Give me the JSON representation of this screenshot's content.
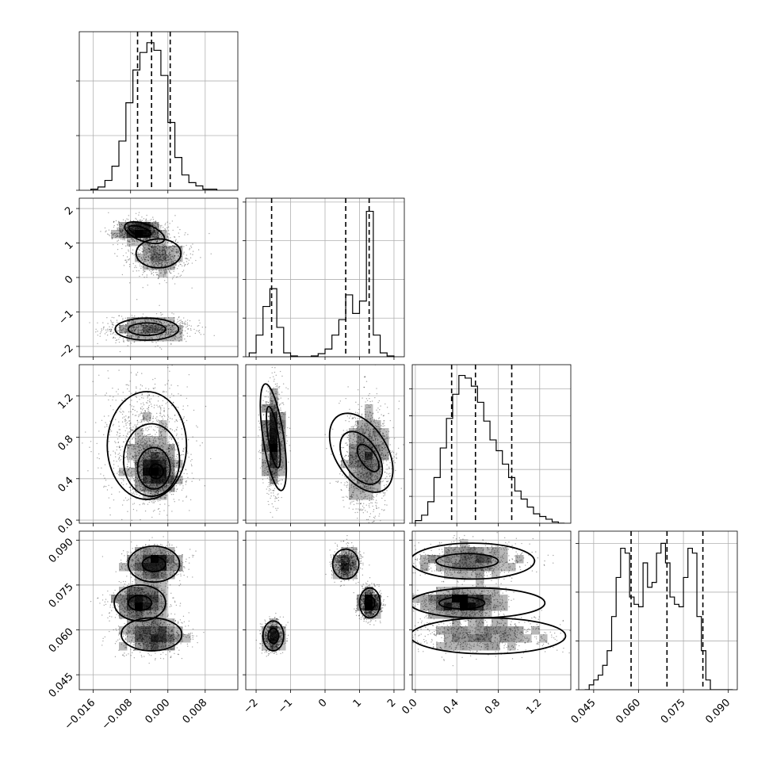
{
  "chart_data": {
    "type": "corner",
    "grid": true,
    "parameters": [
      {
        "range": [
          -0.019,
          0.015
        ],
        "ticks": [
          -0.016,
          -0.008,
          0.0,
          0.008
        ],
        "tick_labels": [
          "−0.016",
          "−0.008",
          "0.000",
          "0.008"
        ],
        "quantiles": [
          -0.0065,
          -0.0035,
          0.0005
        ],
        "hist_bins": [
          -0.0165,
          -0.015,
          -0.0135,
          -0.012,
          -0.0105,
          -0.009,
          -0.0075,
          -0.006,
          -0.0045,
          -0.003,
          -0.0015,
          0.0,
          0.0015,
          0.003,
          0.0045,
          0.006,
          0.0075,
          0.009
        ],
        "hist_counts": [
          1,
          3,
          9,
          22,
          45,
          80,
          110,
          126,
          135,
          128,
          105,
          62,
          30,
          14,
          7,
          4,
          1,
          1
        ],
        "hist_yticks": [
          0,
          50,
          100
        ],
        "hist_ymax": 145
      },
      {
        "range": [
          -2.3,
          2.3
        ],
        "ticks": [
          -2,
          -1,
          0,
          1,
          2
        ],
        "tick_labels": [
          "−2",
          "−1",
          "0",
          "1",
          "2"
        ],
        "quantiles": [
          -1.55,
          0.6,
          1.28
        ],
        "hist_bins": [
          -2.2,
          -2.0,
          -1.8,
          -1.6,
          -1.4,
          -1.2,
          -1.0,
          -0.8,
          -0.6,
          -0.4,
          -0.2,
          0.0,
          0.2,
          0.4,
          0.6,
          0.8,
          1.0,
          1.2,
          1.4,
          1.6,
          1.8
        ],
        "hist_counts": [
          5,
          28,
          65,
          88,
          38,
          5,
          1,
          0,
          0,
          1,
          4,
          10,
          28,
          48,
          80,
          56,
          72,
          188,
          28,
          5,
          1
        ],
        "hist_yticks": [
          0,
          50,
          100,
          150,
          200
        ],
        "hist_ymax": 205
      },
      {
        "range": [
          -0.03,
          1.5
        ],
        "ticks": [
          0.0,
          0.4,
          0.8,
          1.2
        ],
        "tick_labels": [
          "0.0",
          "0.4",
          "0.8",
          "1.2"
        ],
        "quantiles": [
          0.35,
          0.58,
          0.93
        ],
        "hist_bins": [
          0.0,
          0.06,
          0.12,
          0.18,
          0.24,
          0.3,
          0.36,
          0.42,
          0.48,
          0.54,
          0.6,
          0.66,
          0.72,
          0.78,
          0.84,
          0.9,
          0.96,
          1.02,
          1.08,
          1.14,
          1.2,
          1.26,
          1.32,
          1.38
        ],
        "hist_counts": [
          2,
          6,
          16,
          34,
          56,
          78,
          96,
          110,
          108,
          102,
          90,
          76,
          62,
          54,
          44,
          34,
          24,
          18,
          12,
          7,
          5,
          3,
          1,
          0
        ],
        "hist_yticks": [
          0,
          20,
          40,
          60,
          80,
          100
        ],
        "hist_ymax": 118
      },
      {
        "range": [
          0.04,
          0.093
        ],
        "ticks": [
          0.045,
          0.06,
          0.075,
          0.09
        ],
        "tick_labels": [
          "0.045",
          "0.060",
          "0.075",
          "0.090"
        ],
        "quantiles": [
          0.0575,
          0.0695,
          0.0815
        ],
        "hist_bins": [
          0.042,
          0.0435,
          0.045,
          0.0465,
          0.048,
          0.0495,
          0.051,
          0.0525,
          0.054,
          0.0555,
          0.057,
          0.0585,
          0.06,
          0.0615,
          0.063,
          0.0645,
          0.066,
          0.0675,
          0.069,
          0.0705,
          0.072,
          0.0735,
          0.075,
          0.0765,
          0.078,
          0.0795,
          0.081,
          0.0825,
          0.084,
          0.0855,
          0.087,
          0.0885,
          0.09
        ],
        "hist_counts": [
          0,
          2,
          4,
          6,
          10,
          16,
          30,
          46,
          58,
          56,
          38,
          35,
          34,
          52,
          42,
          44,
          56,
          60,
          52,
          38,
          35,
          34,
          46,
          58,
          56,
          30,
          16,
          4,
          0,
          0,
          0,
          0,
          0
        ],
        "hist_yticks": [
          0,
          20,
          40,
          60
        ],
        "hist_ymax": 65
      }
    ],
    "pairs": [
      {
        "x": 0,
        "y": 1,
        "modes": [
          {
            "center": [
              -0.006,
              1.35
            ],
            "sd": [
              0.0025,
              0.15
            ],
            "rot": -0.4,
            "weight": 1.0
          },
          {
            "center": [
              -0.002,
              0.62
            ],
            "sd": [
              0.003,
              0.3
            ],
            "rot": 0.0,
            "weight": 0.7
          },
          {
            "center": [
              -0.004,
              -1.5
            ],
            "sd": [
              0.0045,
              0.18
            ],
            "rot": 0.0,
            "weight": 0.85
          }
        ],
        "contours": [
          {
            "center": [
              -0.005,
              1.3
            ],
            "radii": [
              0.0045,
              0.25
            ],
            "rot": -0.35
          },
          {
            "center": [
              -0.002,
              0.7
            ],
            "radii": [
              0.0048,
              0.42
            ],
            "rot": 0.0
          },
          {
            "center": [
              -0.0045,
              -1.5
            ],
            "radii": [
              0.0068,
              0.32
            ],
            "rot": 0.0
          },
          {
            "center": [
              -0.0045,
              -1.5
            ],
            "radii": [
              0.004,
              0.18
            ],
            "rot": 0.0
          },
          {
            "center": [
              -0.006,
              1.35
            ],
            "radii": [
              0.0025,
              0.12
            ],
            "rot": -0.3
          }
        ]
      },
      {
        "x": 0,
        "y": 2,
        "modes": [
          {
            "center": [
              -0.0025,
              0.48
            ],
            "sd": [
              0.0025,
              0.12
            ],
            "rot": 0.0,
            "weight": 1.0
          },
          {
            "center": [
              -0.0045,
              0.75
            ],
            "sd": [
              0.0045,
              0.3
            ],
            "rot": 0.0,
            "weight": 0.7
          }
        ],
        "contours": [
          {
            "center": [
              -0.0045,
              0.72
            ],
            "radii": [
              0.0085,
              0.52
            ],
            "rot": 0.0
          },
          {
            "center": [
              -0.0035,
              0.58
            ],
            "radii": [
              0.006,
              0.35
            ],
            "rot": 0.0
          },
          {
            "center": [
              -0.003,
              0.5
            ],
            "radii": [
              0.0035,
              0.2
            ],
            "rot": 0.0
          },
          {
            "center": [
              -0.0025,
              0.47
            ],
            "radii": [
              0.0015,
              0.07
            ],
            "rot": 0.0
          }
        ]
      },
      {
        "x": 1,
        "y": 2,
        "modes": [
          {
            "center": [
              -1.5,
              0.78
            ],
            "sd": [
              0.15,
              0.25
            ],
            "rot": 0.0,
            "weight": 0.8
          },
          {
            "center": [
              1.2,
              0.6
            ],
            "sd": [
              0.35,
              0.25
            ],
            "rot": 0.5,
            "weight": 1.0
          }
        ],
        "contours": [
          {
            "center": [
              -1.5,
              0.8
            ],
            "radii": [
              0.3,
              0.52
            ],
            "rot": 0.15
          },
          {
            "center": [
              -1.5,
              0.8
            ],
            "radii": [
              0.15,
              0.3
            ],
            "rot": 0.15
          },
          {
            "center": [
              1.05,
              0.65
            ],
            "radii": [
              0.75,
              0.42
            ],
            "rot": 0.55
          },
          {
            "center": [
              1.05,
              0.6
            ],
            "radii": [
              0.5,
              0.28
            ],
            "rot": 0.55
          },
          {
            "center": [
              1.25,
              0.6
            ],
            "radii": [
              0.22,
              0.15
            ],
            "rot": 0.6
          }
        ]
      },
      {
        "x": 0,
        "y": 3,
        "modes": [
          {
            "center": [
              -0.003,
              0.082
            ],
            "sd": [
              0.003,
              0.003
            ],
            "rot": 0.0,
            "weight": 1.0
          },
          {
            "center": [
              -0.006,
              0.069
            ],
            "sd": [
              0.003,
              0.003
            ],
            "rot": 0.0,
            "weight": 1.0
          },
          {
            "center": [
              -0.003,
              0.058
            ],
            "sd": [
              0.0035,
              0.003
            ],
            "rot": 0.0,
            "weight": 0.9
          }
        ],
        "contours": [
          {
            "center": [
              -0.003,
              0.082
            ],
            "radii": [
              0.0055,
              0.006
            ],
            "rot": 0.0
          },
          {
            "center": [
              -0.006,
              0.069
            ],
            "radii": [
              0.0055,
              0.006
            ],
            "rot": 0.0
          },
          {
            "center": [
              -0.0035,
              0.0585
            ],
            "radii": [
              0.0065,
              0.0055
            ],
            "rot": 0.0
          },
          {
            "center": [
              -0.003,
              0.082
            ],
            "radii": [
              0.0025,
              0.0025
            ],
            "rot": 0.0
          },
          {
            "center": [
              -0.006,
              0.069
            ],
            "radii": [
              0.0025,
              0.0025
            ],
            "rot": 0.0
          }
        ]
      },
      {
        "x": 1,
        "y": 3,
        "modes": [
          {
            "center": [
              -1.5,
              0.058
            ],
            "sd": [
              0.15,
              0.0025
            ],
            "rot": 0.0,
            "weight": 0.8
          },
          {
            "center": [
              0.6,
              0.082
            ],
            "sd": [
              0.18,
              0.0025
            ],
            "rot": 0.0,
            "weight": 0.9
          },
          {
            "center": [
              1.3,
              0.069
            ],
            "sd": [
              0.15,
              0.0025
            ],
            "rot": 0.0,
            "weight": 1.0
          }
        ],
        "contours": [
          {
            "center": [
              -1.5,
              0.058
            ],
            "radii": [
              0.3,
              0.005
            ],
            "rot": 0.0
          },
          {
            "center": [
              -1.5,
              0.058
            ],
            "radii": [
              0.15,
              0.0025
            ],
            "rot": 0.0
          },
          {
            "center": [
              0.6,
              0.082
            ],
            "radii": [
              0.38,
              0.005
            ],
            "rot": 0.0
          },
          {
            "center": [
              1.3,
              0.069
            ],
            "radii": [
              0.3,
              0.005
            ],
            "rot": 0.0
          },
          {
            "center": [
              1.3,
              0.069
            ],
            "radii": [
              0.14,
              0.0022
            ],
            "rot": 0.0
          }
        ]
      },
      {
        "x": 2,
        "y": 3,
        "modes": [
          {
            "center": [
              0.45,
              0.069
            ],
            "sd": [
              0.2,
              0.0025
            ],
            "rot": 0.0,
            "weight": 1.0
          },
          {
            "center": [
              0.5,
              0.083
            ],
            "sd": [
              0.28,
              0.003
            ],
            "rot": 0.0,
            "weight": 0.8
          },
          {
            "center": [
              0.6,
              0.058
            ],
            "sd": [
              0.35,
              0.003
            ],
            "rot": 0.0,
            "weight": 0.8
          }
        ],
        "contours": [
          {
            "center": [
              0.55,
              0.083
            ],
            "radii": [
              0.6,
              0.006
            ],
            "rot": 0.0
          },
          {
            "center": [
              0.6,
              0.069
            ],
            "radii": [
              0.65,
              0.005
            ],
            "rot": 0.0
          },
          {
            "center": [
              0.7,
              0.058
            ],
            "radii": [
              0.75,
              0.006
            ],
            "rot": 0.0
          },
          {
            "center": [
              0.5,
              0.083
            ],
            "radii": [
              0.3,
              0.0025
            ],
            "rot": 0.0
          },
          {
            "center": [
              0.45,
              0.069
            ],
            "radii": [
              0.22,
              0.002
            ],
            "rot": 0.0
          }
        ]
      }
    ]
  }
}
